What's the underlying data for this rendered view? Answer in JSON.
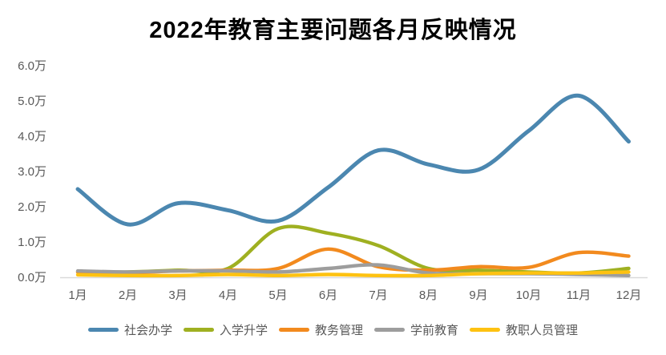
{
  "title": "2022年教育主要问题各月反映情况",
  "chart_data": {
    "type": "line",
    "title": "2022年教育主要问题各月反映情况",
    "categories": [
      "1月",
      "2月",
      "3月",
      "4月",
      "5月",
      "6月",
      "7月",
      "8月",
      "9月",
      "10月",
      "11月",
      "12月"
    ],
    "y_ticks": [
      "0.0万",
      "1.0万",
      "2.0万",
      "3.0万",
      "4.0万",
      "5.0万",
      "6.0万"
    ],
    "ylim": [
      0,
      6
    ],
    "y_unit": "万",
    "grid": false,
    "legend_position": "bottom",
    "axis_line_color": "#d9d9d9",
    "tick_label_color": "#595959",
    "series": [
      {
        "name": "社会办学",
        "color": "#4b87b0",
        "values": [
          2.5,
          1.5,
          2.1,
          1.9,
          1.6,
          2.55,
          3.6,
          3.2,
          3.05,
          4.15,
          5.15,
          3.85
        ]
      },
      {
        "name": "入学升学",
        "color": "#9fb021",
        "values": [
          0.15,
          0.15,
          0.2,
          0.25,
          1.38,
          1.25,
          0.9,
          0.25,
          0.2,
          0.15,
          0.12,
          0.25
        ]
      },
      {
        "name": "教务管理",
        "color": "#f28a1e",
        "values": [
          0.15,
          0.13,
          0.18,
          0.2,
          0.25,
          0.8,
          0.3,
          0.2,
          0.3,
          0.28,
          0.7,
          0.6
        ]
      },
      {
        "name": "学前教育",
        "color": "#9d9d9d",
        "values": [
          0.18,
          0.15,
          0.18,
          0.18,
          0.15,
          0.25,
          0.35,
          0.12,
          0.1,
          0.1,
          0.08,
          0.05
        ]
      },
      {
        "name": "教职人员管理",
        "color": "#fec211",
        "values": [
          0.07,
          0.05,
          0.05,
          0.08,
          0.05,
          0.08,
          0.05,
          0.05,
          0.1,
          0.12,
          0.12,
          0.15
        ]
      }
    ]
  }
}
